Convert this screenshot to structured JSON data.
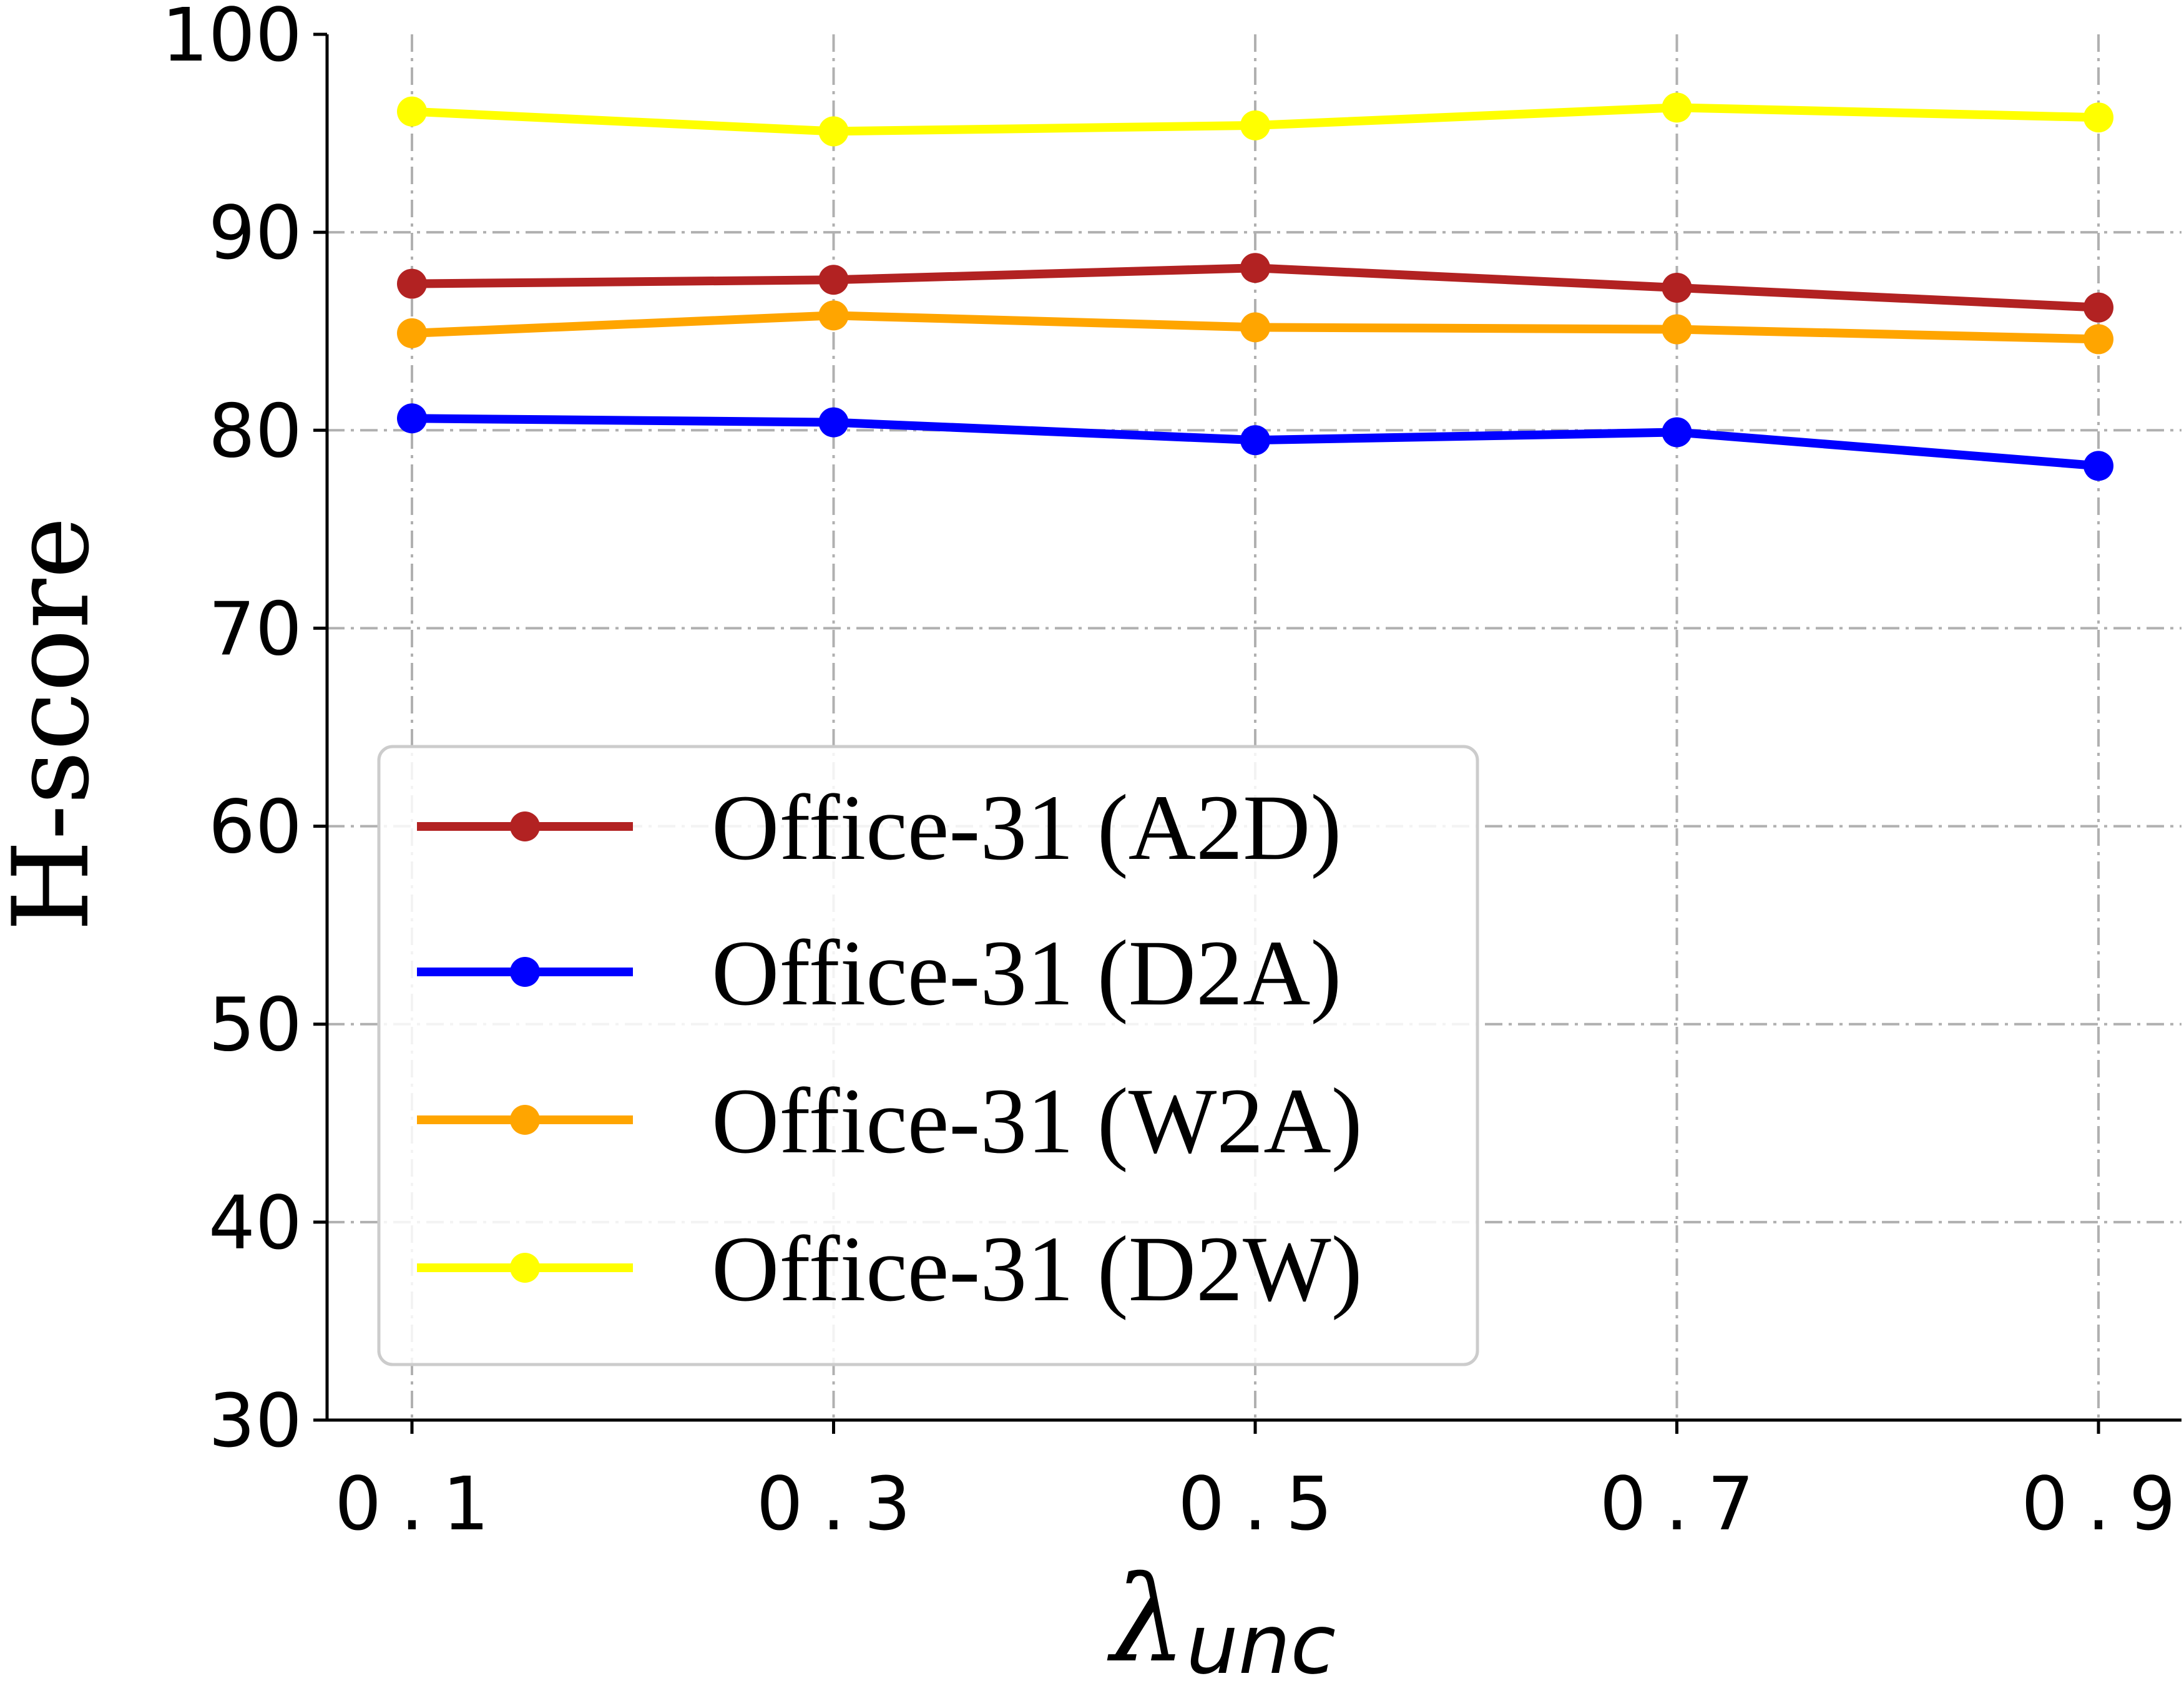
{
  "chart_data": {
    "type": "line",
    "title": "",
    "xlabel_symbol": "λ",
    "xlabel_subscript": "unc",
    "ylabel": "H-score",
    "x": [
      0.1,
      0.3,
      0.5,
      0.7,
      0.9
    ],
    "x_tick_labels": [
      "0.1",
      "0.3",
      "0.5",
      "0.7",
      "0.9"
    ],
    "ylim": [
      30,
      100
    ],
    "y_ticks": [
      30,
      40,
      50,
      60,
      70,
      80,
      90,
      100
    ],
    "y_tick_labels": [
      "30",
      "40",
      "50",
      "60",
      "70",
      "80",
      "90",
      "100"
    ],
    "grid": true,
    "legend_position": "lower-left",
    "series": [
      {
        "name": "Office-31 (A2D)",
        "color": "#b22222",
        "values": [
          87.4,
          87.6,
          88.2,
          87.2,
          86.2
        ]
      },
      {
        "name": "Office-31 (D2A)",
        "color": "#0000ff",
        "values": [
          80.6,
          80.4,
          79.5,
          79.9,
          78.2
        ]
      },
      {
        "name": "Office-31 (W2A)",
        "color": "#ffa500",
        "values": [
          84.9,
          85.8,
          85.2,
          85.1,
          84.6
        ]
      },
      {
        "name": "Office-31 (D2W)",
        "color": "#ffff00",
        "values": [
          96.1,
          95.1,
          95.4,
          96.3,
          95.8
        ]
      }
    ]
  }
}
